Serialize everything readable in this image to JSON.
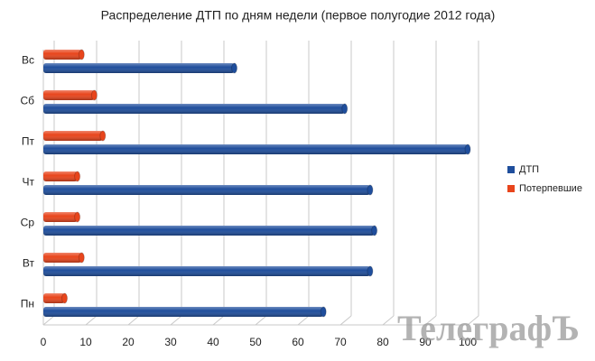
{
  "chart_data": {
    "type": "barh",
    "title": "Распределение ДТП по дням недели (первое полугодие 2012 года)",
    "categories": [
      "Пн",
      "Вт",
      "Ср",
      "Чт",
      "Пт",
      "Сб",
      "Вс"
    ],
    "series": [
      {
        "name": "ДТП",
        "color": "#1f4e9c",
        "values": [
          66,
          77,
          78,
          77,
          100,
          71,
          45
        ]
      },
      {
        "name": "Потерпевшие",
        "color": "#e8451c",
        "values": [
          5,
          9,
          8,
          8,
          14,
          12,
          9
        ]
      }
    ],
    "xlim": [
      0,
      100
    ],
    "xticks": [
      0,
      10,
      20,
      30,
      40,
      50,
      60,
      70,
      80,
      90,
      100
    ],
    "grid": true,
    "legend": "right",
    "watermark": "ТелеграфЪ"
  }
}
